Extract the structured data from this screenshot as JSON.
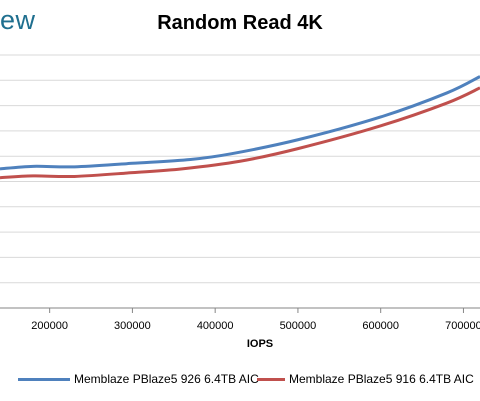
{
  "brand": "ew",
  "colors": {
    "series1": "#4f81bd",
    "series2": "#c0504d",
    "grid": "#d9d9d9",
    "axis": "#868686"
  },
  "chart_data": {
    "type": "line",
    "title": "Random Read 4K",
    "xlabel": "IOPS",
    "ylabel": "",
    "x_ticks": [
      200000,
      300000,
      400000,
      500000,
      600000,
      700000
    ],
    "x_tick_labels": [
      "200000",
      "300000",
      "400000",
      "500000",
      "600000",
      "700000"
    ],
    "xlim": [
      140000,
      720000
    ],
    "ylim": [
      0,
      10
    ],
    "y_gridlines": [
      0,
      1,
      2,
      3,
      4,
      5,
      6,
      7,
      8,
      9,
      10
    ],
    "grid": true,
    "legend_position": "bottom",
    "series": [
      {
        "name": "Memblaze PBlaze5 926 6.4TB AIC",
        "color": "#4f81bd",
        "points": [
          [
            140000,
            5.5
          ],
          [
            180000,
            5.6
          ],
          [
            230000,
            5.58
          ],
          [
            300000,
            5.72
          ],
          [
            370000,
            5.87
          ],
          [
            420000,
            6.1
          ],
          [
            500000,
            6.65
          ],
          [
            600000,
            7.55
          ],
          [
            680000,
            8.5
          ],
          [
            720000,
            9.15
          ]
        ]
      },
      {
        "name": "Memblaze PBlaze5 916 6.4TB AIC",
        "color": "#c0504d",
        "points": [
          [
            140000,
            5.15
          ],
          [
            180000,
            5.22
          ],
          [
            230000,
            5.2
          ],
          [
            300000,
            5.35
          ],
          [
            360000,
            5.5
          ],
          [
            430000,
            5.8
          ],
          [
            500000,
            6.3
          ],
          [
            600000,
            7.2
          ],
          [
            680000,
            8.1
          ],
          [
            720000,
            8.7
          ]
        ]
      }
    ]
  }
}
